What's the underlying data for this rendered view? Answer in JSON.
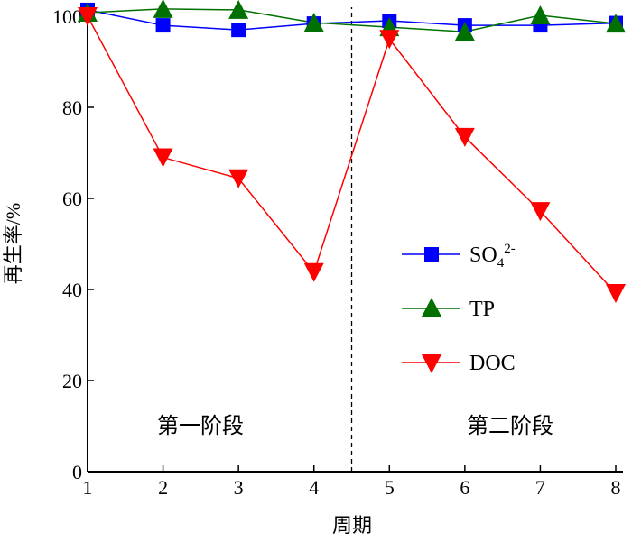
{
  "chart_data": {
    "type": "line",
    "xlabel": "周期",
    "ylabel": "再生率/%",
    "x": [
      1,
      2,
      3,
      4,
      5,
      6,
      7,
      8
    ],
    "xlim": [
      1,
      8
    ],
    "ylim": [
      0,
      100
    ],
    "xticks": [
      "1",
      "2",
      "3",
      "4",
      "5",
      "6",
      "7",
      "8"
    ],
    "yticks": [
      "0",
      "20",
      "40",
      "60",
      "80",
      "100"
    ],
    "grid": false,
    "legend_position": "center-right",
    "divider_x": 4.5,
    "annotations": [
      "第一阶段",
      "第二阶段"
    ],
    "series": [
      {
        "name": "SO4 2-",
        "legend_main": "SO",
        "legend_sub": "4",
        "legend_sup": "2-",
        "color": "#0000ff",
        "marker": "square",
        "values": [
          101.4,
          98,
          97,
          98.4,
          99,
          98,
          98,
          98.5
        ]
      },
      {
        "name": "TP",
        "color": "#007000",
        "marker": "triangle-up",
        "values": [
          100.8,
          101.6,
          101.4,
          98.6,
          97.6,
          96.6,
          100.2,
          98.4
        ]
      },
      {
        "name": "DOC",
        "color": "#ff0000",
        "marker": "triangle-down",
        "values": [
          100,
          69,
          64.4,
          43.8,
          95,
          73.5,
          57.2,
          39.2
        ]
      }
    ]
  }
}
